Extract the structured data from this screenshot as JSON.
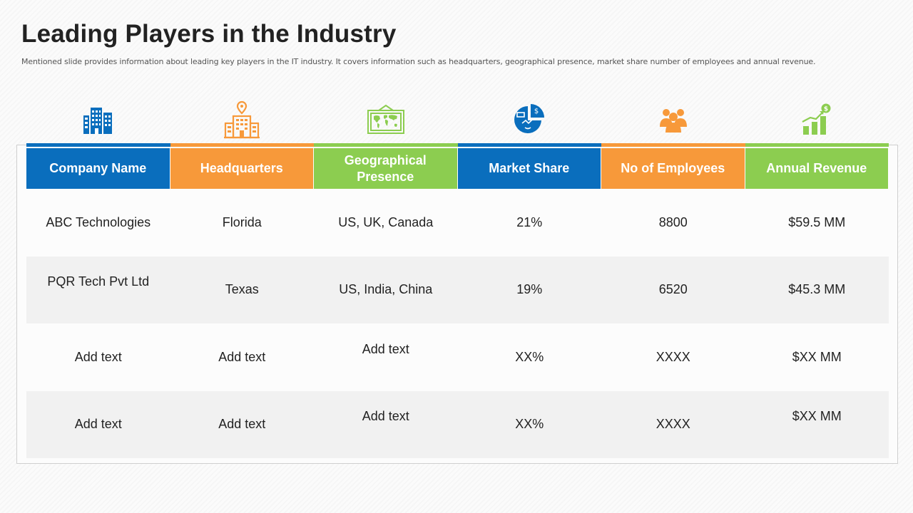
{
  "slide": {
    "title": "Leading Players in the Industry",
    "subtitle": "Mentioned slide provides information about leading key players in the IT industry. It covers information such as headquarters, geographical presence, market share number of employees and annual revenue."
  },
  "colors": {
    "blue": "#0a6ebd",
    "orange": "#f7993a",
    "green": "#8ccd50"
  },
  "columns": [
    {
      "label": "Company Name",
      "color": "#0a6ebd",
      "icon": "office-building-icon"
    },
    {
      "label": "Headquarters",
      "color": "#f7993a",
      "icon": "headquarters-location-icon"
    },
    {
      "label": "Geographical Presence",
      "color": "#8ccd50",
      "icon": "world-map-board-icon"
    },
    {
      "label": "Market Share",
      "color": "#0a6ebd",
      "icon": "market-share-pie-icon"
    },
    {
      "label": "No of Employees",
      "color": "#f7993a",
      "icon": "employees-group-icon"
    },
    {
      "label": "Annual Revenue",
      "color": "#8ccd50",
      "icon": "revenue-growth-chart-icon"
    }
  ],
  "rows": [
    [
      "ABC Technologies",
      "Florida",
      "US, UK, Canada",
      "21%",
      "8800",
      "$59.5 MM"
    ],
    [
      "PQR Tech Pvt Ltd",
      "Texas",
      "US, India, China",
      "19%",
      "6520",
      "$45.3 MM"
    ],
    [
      "Add text",
      "Add text",
      "Add text",
      "XX%",
      "XXXX",
      "$XX MM"
    ],
    [
      "Add text",
      "Add text",
      "Add text",
      "XX%",
      "XXXX",
      "$XX MM"
    ]
  ]
}
